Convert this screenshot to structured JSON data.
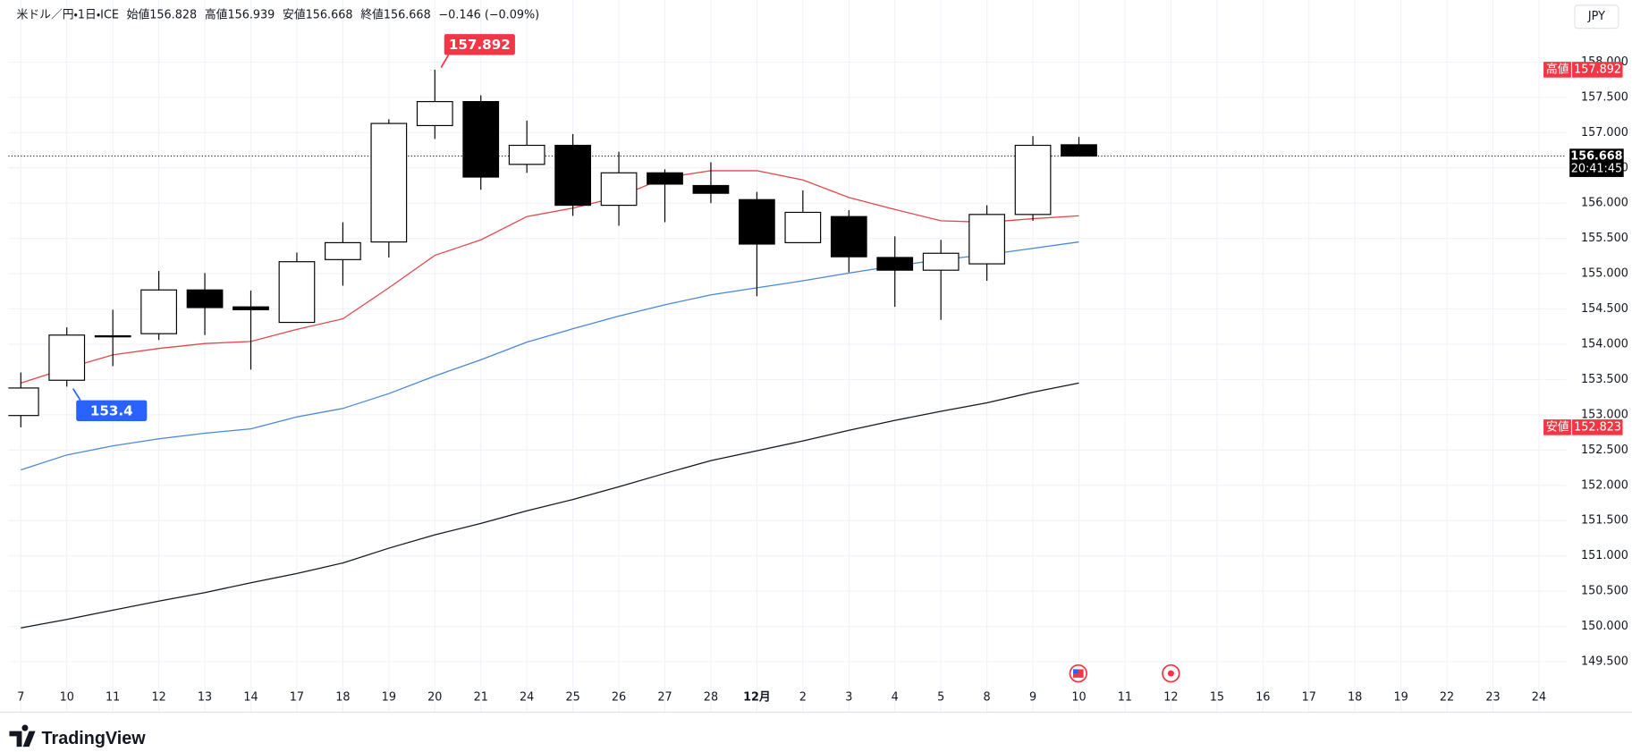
{
  "chart_data": {
    "type": "candlestick",
    "instrument": "米ドル／円・1日・ICE",
    "ohlc_labels": [
      "始値",
      "高値",
      "安値",
      "終値"
    ],
    "change": "−0.146 (−0.09%)",
    "currency": "JPY",
    "countdown": "20:41:45",
    "brand": "TradingView",
    "categories": [
      "7",
      "10",
      "11",
      "12",
      "13",
      "14",
      "17",
      "18",
      "19",
      "20",
      "21",
      "24",
      "25",
      "26",
      "27",
      "28",
      "12月",
      "2",
      "3",
      "4",
      "5",
      "8",
      "9",
      "10",
      "11",
      "12",
      "15",
      "16",
      "17",
      "18",
      "19",
      "22",
      "23",
      "24"
    ],
    "open": [
      152.99,
      153.49,
      154.12,
      154.15,
      154.77,
      154.53,
      154.31,
      155.2,
      155.45,
      157.1,
      157.44,
      156.55,
      156.82,
      155.97,
      156.43,
      156.25,
      156.05,
      155.44,
      155.81,
      155.23,
      155.05,
      155.14,
      155.84,
      156.828,
      null,
      null,
      null,
      null,
      null,
      null,
      null,
      null,
      null,
      null
    ],
    "high": [
      153.6,
      154.24,
      154.49,
      155.04,
      155.01,
      154.76,
      155.3,
      155.73,
      157.19,
      157.892,
      157.53,
      157.17,
      156.98,
      156.73,
      156.48,
      156.58,
      156.16,
      156.18,
      155.9,
      155.53,
      155.48,
      155.97,
      156.95,
      156.939,
      null,
      null,
      null,
      null,
      null,
      null,
      null,
      null,
      null,
      null
    ],
    "low": [
      152.823,
      153.4,
      153.69,
      154.06,
      154.13,
      153.64,
      154.31,
      154.83,
      155.23,
      156.91,
      156.19,
      156.43,
      155.82,
      155.68,
      155.73,
      156.0,
      154.68,
      155.44,
      155.02,
      154.53,
      154.345,
      154.9,
      155.75,
      156.668,
      null,
      null,
      null,
      null,
      null,
      null,
      null,
      null,
      null,
      null
    ],
    "close": [
      153.38,
      154.13,
      154.12,
      154.77,
      154.52,
      154.49,
      155.17,
      155.44,
      157.13,
      157.44,
      156.37,
      156.82,
      155.97,
      156.43,
      156.27,
      156.14,
      155.42,
      155.87,
      155.24,
      155.05,
      155.29,
      155.84,
      156.82,
      156.668,
      null,
      null,
      null,
      null,
      null,
      null,
      null,
      null,
      null,
      null
    ],
    "up_color": "#ffffff",
    "down_color": "#000000",
    "high_color": "#f23645",
    "low_color": "#2962ff",
    "overlays": [
      {
        "color": "#e0474c",
        "values": [
          153.45,
          153.66,
          153.85,
          153.94,
          154.01,
          154.04,
          154.21,
          154.36,
          154.8,
          155.26,
          155.48,
          155.81,
          155.93,
          156.09,
          156.36,
          156.46,
          156.46,
          156.33,
          156.08,
          155.91,
          155.75,
          155.73,
          155.78,
          155.82,
          null,
          null,
          null,
          null,
          null,
          null,
          null,
          null,
          null,
          null
        ]
      },
      {
        "color": "#4a86d8",
        "values": [
          152.22,
          152.43,
          152.56,
          152.66,
          152.74,
          152.8,
          152.97,
          153.09,
          153.3,
          153.55,
          153.78,
          154.03,
          154.22,
          154.4,
          154.56,
          154.7,
          154.8,
          154.9,
          155.01,
          155.11,
          155.2,
          155.27,
          155.36,
          155.45,
          null,
          null,
          null,
          null,
          null,
          null,
          null,
          null,
          null,
          null
        ]
      },
      {
        "color": "#131722",
        "values": [
          149.98,
          150.1,
          150.23,
          150.36,
          150.48,
          150.62,
          150.75,
          150.9,
          151.11,
          151.3,
          151.46,
          151.64,
          151.8,
          151.98,
          152.17,
          152.35,
          152.49,
          152.63,
          152.78,
          152.92,
          153.05,
          153.17,
          153.32,
          153.45,
          null,
          null,
          null,
          null,
          null,
          null,
          null,
          null,
          null,
          null
        ]
      }
    ],
    "ylim": [
      149.2,
      158.88
    ],
    "yticks": [
      {
        "value": 149.5,
        "label": "149.500"
      },
      {
        "value": 150,
        "label": "150.000"
      },
      {
        "value": 150.5,
        "label": "150.500"
      },
      {
        "value": 151,
        "label": "151.000"
      },
      {
        "value": 151.5,
        "label": "151.500"
      },
      {
        "value": 152,
        "label": "152.000"
      },
      {
        "value": 152.5,
        "label": "152.500"
      },
      {
        "value": 153,
        "label": "153.000"
      },
      {
        "value": 153.5,
        "label": "153.500"
      },
      {
        "value": 154,
        "label": "154.000"
      },
      {
        "value": 154.5,
        "label": "154.500"
      },
      {
        "value": 155,
        "label": "155.000"
      },
      {
        "value": 155.5,
        "label": "155.500"
      },
      {
        "value": 156,
        "label": "156.000"
      },
      {
        "value": 156.5,
        "label": "156.500"
      },
      {
        "value": 157,
        "label": "157.000"
      },
      {
        "value": 157.5,
        "label": "157.500"
      },
      {
        "value": 158,
        "label": "158.000"
      }
    ],
    "grid": true
  }
}
